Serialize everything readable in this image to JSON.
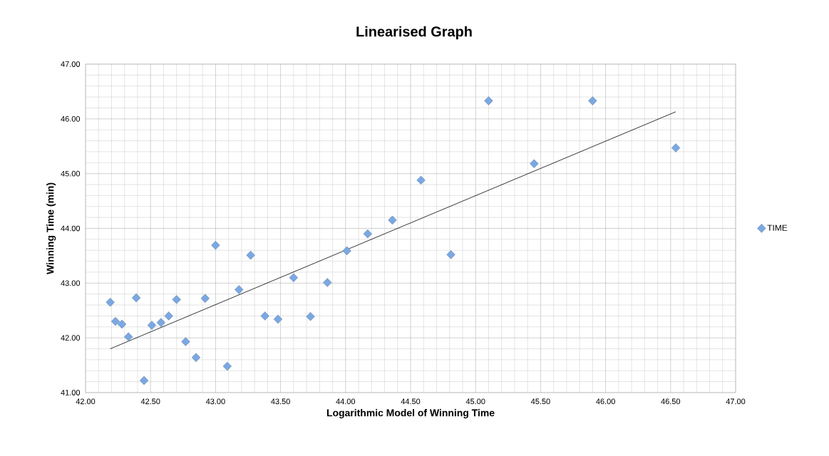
{
  "chart_data": {
    "type": "scatter",
    "title": "Linearised Graph",
    "xlabel": "Logarithmic Model of Winning Time",
    "ylabel": "Winning Time (min)",
    "xlim": [
      42,
      47
    ],
    "ylim": [
      41,
      47
    ],
    "xticks": [
      {
        "value": 42,
        "label": "42.00"
      },
      {
        "value": 42.5,
        "label": "42.50"
      },
      {
        "value": 43,
        "label": "43.00"
      },
      {
        "value": 43.5,
        "label": "43.50"
      },
      {
        "value": 44,
        "label": "44.00"
      },
      {
        "value": 44.5,
        "label": "44.50"
      },
      {
        "value": 45,
        "label": "45.00"
      },
      {
        "value": 45.5,
        "label": "45.50"
      },
      {
        "value": 46,
        "label": "46.00"
      },
      {
        "value": 46.5,
        "label": "46.50"
      },
      {
        "value": 47,
        "label": "47.00"
      }
    ],
    "yticks": [
      {
        "value": 41,
        "label": "41.00"
      },
      {
        "value": 42,
        "label": "42.00"
      },
      {
        "value": 43,
        "label": "43.00"
      },
      {
        "value": 44,
        "label": "44.00"
      },
      {
        "value": 45,
        "label": "45.00"
      },
      {
        "value": 46,
        "label": "46.00"
      },
      {
        "value": 47,
        "label": "47.00"
      }
    ],
    "grid": true,
    "legend": "right",
    "series": [
      {
        "name": "TIME",
        "marker": "diamond",
        "color": "#7aa8e2",
        "x": [
          42.19,
          42.23,
          42.28,
          42.33,
          42.39,
          42.45,
          42.51,
          42.58,
          42.64,
          42.7,
          42.77,
          42.85,
          42.92,
          43.0,
          43.09,
          43.18,
          43.27,
          43.38,
          43.48,
          43.6,
          43.73,
          43.86,
          44.01,
          44.17,
          44.36,
          44.58,
          44.81,
          45.1,
          45.45,
          45.9,
          46.54
        ],
        "values": [
          42.65,
          42.3,
          42.25,
          42.02,
          42.73,
          41.22,
          42.23,
          42.28,
          42.4,
          42.7,
          41.93,
          41.64,
          42.72,
          43.69,
          41.48,
          42.88,
          43.51,
          42.4,
          42.34,
          43.1,
          42.39,
          43.01,
          43.59,
          43.9,
          44.15,
          44.88,
          43.52,
          46.33,
          45.18,
          46.33,
          45.47
        ]
      },
      {
        "type": "line",
        "marker": "none",
        "color": "#000000",
        "x": [
          42.19,
          46.54
        ],
        "values": [
          41.8,
          46.13
        ]
      }
    ]
  }
}
